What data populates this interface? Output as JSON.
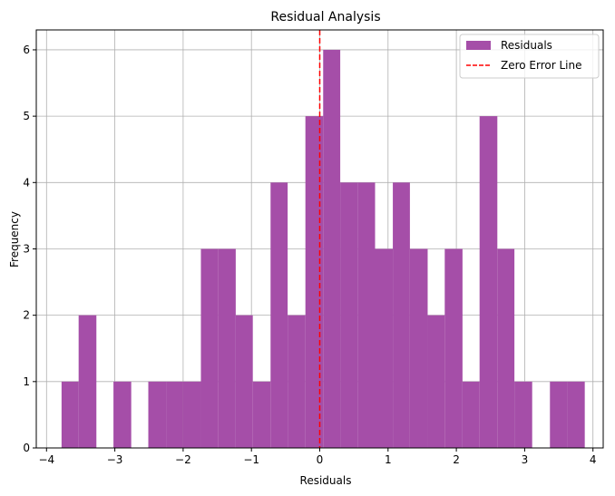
{
  "chart_data": {
    "type": "histogram",
    "title": "Residual Analysis",
    "xlabel": "Residuals",
    "ylabel": "Frequency",
    "xlim": [
      -4.15,
      4.15
    ],
    "ylim": [
      0,
      6.3
    ],
    "xticks": [
      -4,
      -3,
      -2,
      -1,
      0,
      1,
      2,
      3,
      4
    ],
    "yticks": [
      0,
      1,
      2,
      3,
      4,
      5,
      6
    ],
    "grid": true,
    "legend_position": "top-right",
    "bar_color": "#a54ea8",
    "bins": [
      {
        "x0": -3.78,
        "x1": -3.53,
        "count": 1
      },
      {
        "x0": -3.53,
        "x1": -3.27,
        "count": 2
      },
      {
        "x0": -3.27,
        "x1": -3.02,
        "count": 0
      },
      {
        "x0": -3.02,
        "x1": -2.76,
        "count": 1
      },
      {
        "x0": -2.76,
        "x1": -2.51,
        "count": 0
      },
      {
        "x0": -2.51,
        "x1": -2.25,
        "count": 1
      },
      {
        "x0": -2.25,
        "x1": -2.0,
        "count": 1
      },
      {
        "x0": -2.0,
        "x1": -1.74,
        "count": 1
      },
      {
        "x0": -1.74,
        "x1": -1.49,
        "count": 3
      },
      {
        "x0": -1.49,
        "x1": -1.23,
        "count": 3
      },
      {
        "x0": -1.23,
        "x1": -0.98,
        "count": 2
      },
      {
        "x0": -0.98,
        "x1": -0.72,
        "count": 1
      },
      {
        "x0": -0.72,
        "x1": -0.47,
        "count": 4
      },
      {
        "x0": -0.47,
        "x1": -0.21,
        "count": 2
      },
      {
        "x0": -0.21,
        "x1": 0.05,
        "count": 5
      },
      {
        "x0": 0.05,
        "x1": 0.3,
        "count": 6
      },
      {
        "x0": 0.3,
        "x1": 0.56,
        "count": 4
      },
      {
        "x0": 0.56,
        "x1": 0.81,
        "count": 4
      },
      {
        "x0": 0.81,
        "x1": 1.07,
        "count": 3
      },
      {
        "x0": 1.07,
        "x1": 1.32,
        "count": 4
      },
      {
        "x0": 1.32,
        "x1": 1.58,
        "count": 3
      },
      {
        "x0": 1.58,
        "x1": 1.83,
        "count": 2
      },
      {
        "x0": 1.83,
        "x1": 2.09,
        "count": 3
      },
      {
        "x0": 2.09,
        "x1": 2.34,
        "count": 1
      },
      {
        "x0": 2.34,
        "x1": 2.6,
        "count": 5
      },
      {
        "x0": 2.6,
        "x1": 2.85,
        "count": 3
      },
      {
        "x0": 2.85,
        "x1": 3.11,
        "count": 1
      },
      {
        "x0": 3.11,
        "x1": 3.37,
        "count": 0
      },
      {
        "x0": 3.37,
        "x1": 3.62,
        "count": 1
      },
      {
        "x0": 3.62,
        "x1": 3.88,
        "count": 1
      }
    ],
    "reference_line": {
      "x": 0,
      "color": "#ff0000",
      "style": "dashed",
      "label": "Zero Error Line"
    },
    "legend": [
      {
        "label": "Residuals",
        "type": "patch",
        "color": "#a54ea8"
      },
      {
        "label": "Zero Error Line",
        "type": "dashed-line",
        "color": "#ff0000"
      }
    ]
  }
}
